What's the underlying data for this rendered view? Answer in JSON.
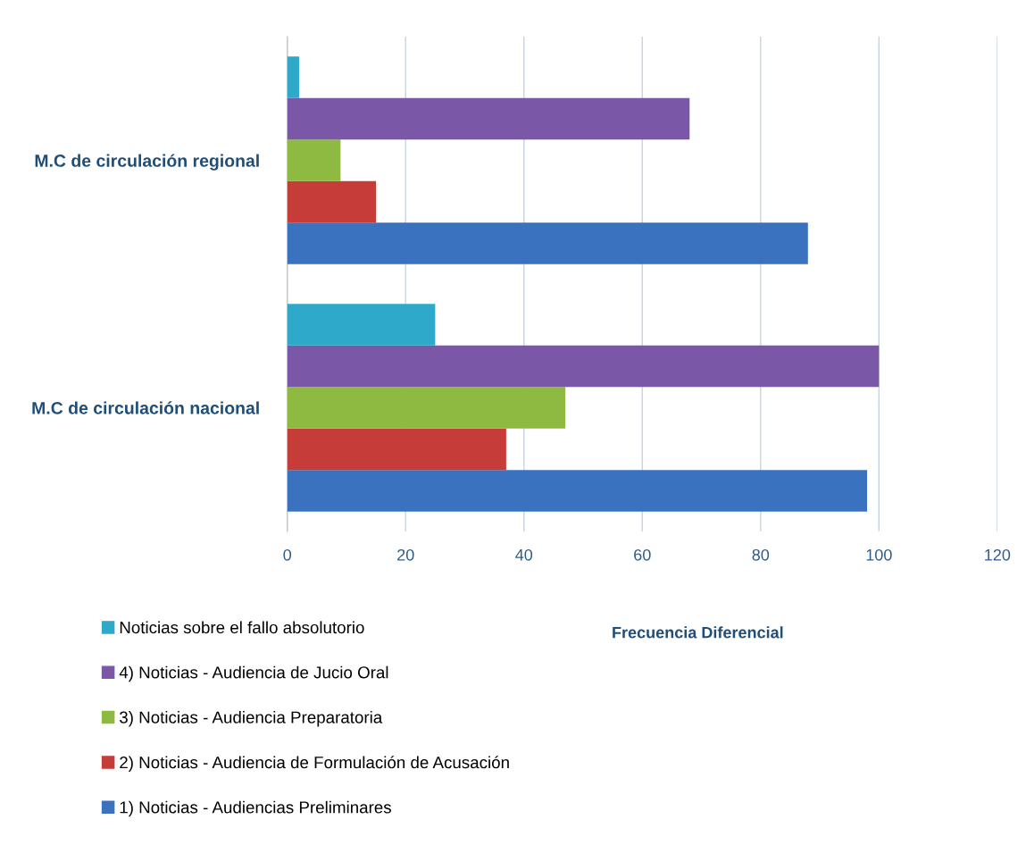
{
  "chart_data": {
    "type": "bar",
    "orientation": "horizontal",
    "xlabel": "Frecuencia Diferencial",
    "categories": [
      "M.C de circulación regional",
      "M.C de circulación nacional"
    ],
    "series": [
      {
        "name": "1) Noticias - Audiencias Preliminares",
        "color": "#3a72c0",
        "values": [
          88,
          98
        ]
      },
      {
        "name": "2) Noticias - Audiencia de Formulación de Acusación",
        "color": "#c63c38",
        "values": [
          15,
          37
        ]
      },
      {
        "name": "3) Noticias - Audiencia Preparatoria",
        "color": "#8fba42",
        "values": [
          9,
          47
        ]
      },
      {
        "name": "4) Noticias - Audiencia de Jucio Oral",
        "color": "#7b57a8",
        "values": [
          68,
          100
        ]
      },
      {
        "name": "Noticias sobre el fallo absolutorio",
        "color": "#2ea9c9",
        "values": [
          2,
          25
        ]
      }
    ],
    "xlim": [
      0,
      120
    ],
    "xticks": [
      0,
      20,
      40,
      60,
      80,
      100,
      120
    ],
    "grid": "x",
    "legend": "bottom left"
  }
}
